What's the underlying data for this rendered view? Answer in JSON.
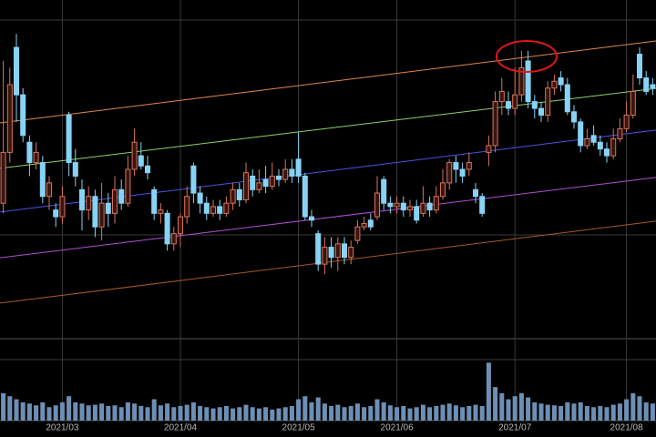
{
  "chart_data": {
    "type": "candlestick",
    "categories": [
      null,
      null,
      null,
      null,
      null,
      null,
      null,
      null,
      null,
      "2021/03",
      null,
      null,
      null,
      null,
      null,
      null,
      null,
      null,
      null,
      null,
      null,
      null,
      null,
      null,
      null,
      null,
      null,
      "2021/04",
      null,
      null,
      null,
      null,
      null,
      null,
      null,
      null,
      null,
      null,
      null,
      null,
      null,
      null,
      null,
      null,
      null,
      "2021/05",
      null,
      null,
      null,
      null,
      null,
      null,
      null,
      null,
      null,
      null,
      null,
      null,
      null,
      null,
      "2021/06",
      null,
      null,
      null,
      null,
      null,
      null,
      null,
      null,
      null,
      null,
      null,
      null,
      null,
      null,
      null,
      null,
      null,
      "2021/07",
      null,
      null,
      null,
      null,
      null,
      null,
      null,
      null,
      null,
      null,
      null,
      null,
      null,
      null,
      null,
      null,
      "2021/08",
      null,
      null,
      null,
      null
    ],
    "open": [
      40,
      55,
      86,
      72,
      58,
      52,
      52,
      42,
      38,
      36,
      66,
      52,
      44,
      38,
      42,
      33,
      40,
      37,
      44,
      40,
      50,
      54,
      51,
      44,
      37,
      37,
      28,
      31,
      36,
      51,
      43,
      40,
      37,
      39,
      37,
      40,
      44,
      41,
      48,
      44,
      47,
      45,
      48,
      47,
      50,
      53,
      48,
      36,
      31,
      22,
      27,
      24,
      28,
      24,
      29,
      33,
      35,
      36,
      47,
      40,
      39,
      40,
      38,
      39,
      37,
      40,
      38,
      42,
      46,
      52,
      50,
      50,
      44,
      42,
      55,
      57,
      70,
      70,
      68,
      72,
      82,
      70,
      68,
      66,
      74,
      77,
      75,
      67,
      64,
      57,
      60,
      58,
      56,
      54,
      59,
      62,
      66,
      84,
      77,
      75
    ],
    "high": [
      82,
      80,
      90,
      74,
      60,
      58,
      54,
      48,
      40,
      45,
      67,
      56,
      47,
      45,
      44,
      46,
      43,
      48,
      47,
      54,
      62,
      58,
      54,
      45,
      40,
      38,
      33,
      37,
      45,
      52,
      45,
      42,
      41,
      41,
      42,
      46,
      46,
      52,
      50,
      50,
      51,
      52,
      50,
      53,
      53,
      61,
      49,
      38,
      32,
      30,
      30,
      30,
      30,
      29,
      35,
      36,
      37,
      48,
      48,
      42,
      42,
      42,
      41,
      41,
      45,
      42,
      45,
      50,
      53,
      54,
      52,
      55,
      46,
      43,
      60,
      73,
      77,
      73,
      80,
      85,
      85,
      72,
      70,
      76,
      78,
      79,
      77,
      69,
      65,
      62,
      63,
      60,
      58,
      62,
      65,
      70,
      78,
      86,
      79,
      77
    ],
    "low": [
      37,
      52,
      64,
      58,
      48,
      50,
      40,
      38,
      33,
      34,
      48,
      45,
      32,
      35,
      30,
      29,
      33,
      34,
      38,
      39,
      48,
      50,
      47,
      35,
      34,
      26,
      26,
      27,
      34,
      40,
      37,
      35,
      36,
      35,
      36,
      38,
      39,
      40,
      42,
      43,
      43,
      44,
      45,
      46,
      46,
      46,
      35,
      33,
      20,
      19,
      21,
      20,
      22,
      22,
      28,
      32,
      32,
      35,
      38,
      37,
      37,
      36,
      36,
      34,
      36,
      36,
      37,
      41,
      44,
      46,
      46,
      48,
      40,
      36,
      51,
      55,
      66,
      66,
      66,
      70,
      68,
      65,
      64,
      64,
      72,
      73,
      66,
      62,
      55,
      56,
      57,
      54,
      52,
      53,
      58,
      61,
      65,
      75,
      72,
      72
    ],
    "close": [
      55,
      75,
      72,
      60,
      52,
      55,
      42,
      46,
      36,
      42,
      52,
      48,
      38,
      42,
      33,
      40,
      37,
      44,
      40,
      50,
      58,
      51,
      49,
      37,
      38,
      28,
      31,
      36,
      42,
      43,
      40,
      37,
      39,
      37,
      40,
      44,
      41,
      49,
      44,
      46,
      45,
      48,
      47,
      50,
      48,
      48,
      36,
      35,
      22,
      27,
      24,
      28,
      24,
      27,
      33,
      34,
      33,
      43,
      40,
      39,
      40,
      38,
      39,
      35,
      40,
      38,
      42,
      46,
      52,
      50,
      48,
      52,
      42,
      37,
      57,
      70,
      73,
      68,
      72,
      80,
      70,
      68,
      66,
      74,
      76,
      75,
      67,
      64,
      57,
      59,
      58,
      56,
      54,
      59,
      62,
      66,
      73,
      77,
      73,
      74
    ],
    "ylim": [
      0,
      100
    ],
    "up_color": "#d9745c",
    "down_color": "#87d3f5",
    "trend_lines": [
      {
        "color": "#e0884f",
        "values": [
          63.7,
          87.9
        ]
      },
      {
        "color": "#8fd16a",
        "values": [
          50.3,
          73.9
        ]
      },
      {
        "color": "#4b55e0",
        "values": [
          37.4,
          61.6
        ]
      },
      {
        "color": "#b04fd6",
        "values": [
          23.9,
          47.6
        ]
      },
      {
        "color": "#a8582c",
        "values": [
          10.5,
          34.7
        ]
      }
    ],
    "volume": {
      "color": "#6e8fb5",
      "ylim": [
        0,
        100
      ],
      "values": [
        45,
        40,
        35,
        30,
        28,
        25,
        30,
        22,
        25,
        30,
        40,
        30,
        28,
        25,
        26,
        28,
        24,
        25,
        22,
        30,
        28,
        24,
        22,
        35,
        25,
        28,
        22,
        24,
        26,
        30,
        24,
        22,
        20,
        22,
        24,
        20,
        22,
        26,
        22,
        20,
        22,
        18,
        20,
        22,
        24,
        35,
        40,
        30,
        38,
        28,
        24,
        26,
        22,
        24,
        28,
        22,
        24,
        35,
        30,
        25,
        22,
        24,
        20,
        22,
        26,
        22,
        24,
        26,
        28,
        25,
        22,
        24,
        26,
        24,
        95,
        55,
        45,
        35,
        40,
        45,
        38,
        30,
        28,
        26,
        25,
        24,
        30,
        28,
        30,
        24,
        22,
        24,
        22,
        26,
        28,
        35,
        45,
        40,
        30,
        28
      ]
    }
  }
}
